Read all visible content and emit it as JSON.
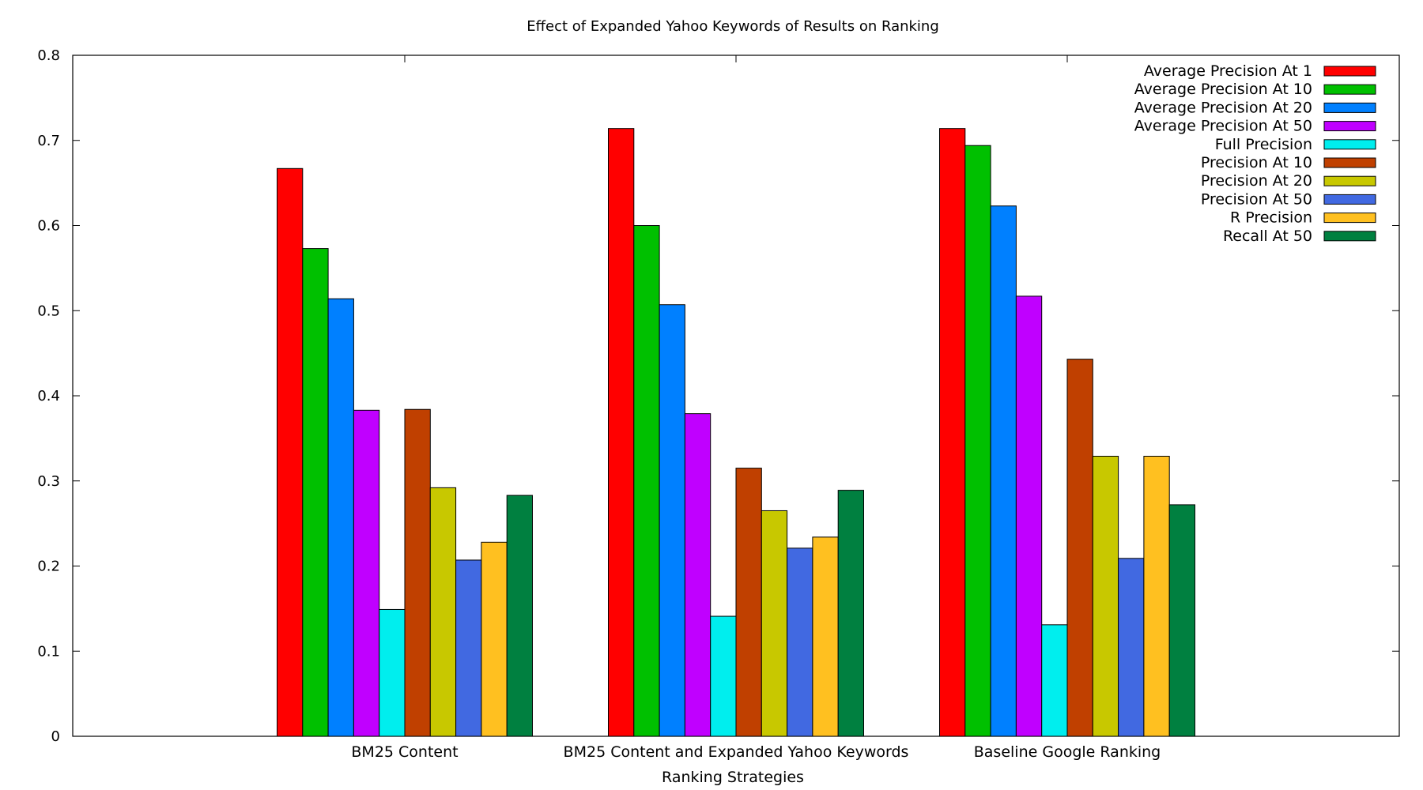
{
  "chart_data": {
    "type": "bar",
    "title": "Effect of Expanded Yahoo Keywords of Results on Ranking",
    "xlabel": "Ranking Strategies",
    "ylabel": "",
    "ylim": [
      0,
      0.8
    ],
    "yticks": [
      "0",
      "0.1",
      "0.2",
      "0.3",
      "0.4",
      "0.5",
      "0.6",
      "0.7",
      "0.8"
    ],
    "categories": [
      "BM25 Content",
      "BM25 Content and Expanded Yahoo Keywords",
      "Baseline Google Ranking"
    ],
    "legend_position": "top-right",
    "grid": false,
    "series": [
      {
        "name": "Average Precision At 1",
        "color": "#ff0000",
        "values": [
          0.667,
          0.714,
          0.714
        ]
      },
      {
        "name": "Average Precision At 10",
        "color": "#00c000",
        "values": [
          0.573,
          0.6,
          0.694
        ]
      },
      {
        "name": "Average Precision At 20",
        "color": "#0080ff",
        "values": [
          0.514,
          0.507,
          0.623
        ]
      },
      {
        "name": "Average Precision At 50",
        "color": "#c000ff",
        "values": [
          0.383,
          0.379,
          0.517
        ]
      },
      {
        "name": "Full Precision",
        "color": "#00eeee",
        "values": [
          0.149,
          0.141,
          0.131
        ]
      },
      {
        "name": "Precision At 10",
        "color": "#c04000",
        "values": [
          0.384,
          0.315,
          0.443
        ]
      },
      {
        "name": "Precision At 20",
        "color": "#c8c800",
        "values": [
          0.292,
          0.265,
          0.329
        ]
      },
      {
        "name": "Precision At 50",
        "color": "#4169e1",
        "values": [
          0.207,
          0.221,
          0.209
        ]
      },
      {
        "name": "R Precision",
        "color": "#ffc020",
        "values": [
          0.228,
          0.234,
          0.329
        ]
      },
      {
        "name": "Recall At 50",
        "color": "#008040",
        "values": [
          0.283,
          0.289,
          0.272
        ]
      }
    ]
  }
}
